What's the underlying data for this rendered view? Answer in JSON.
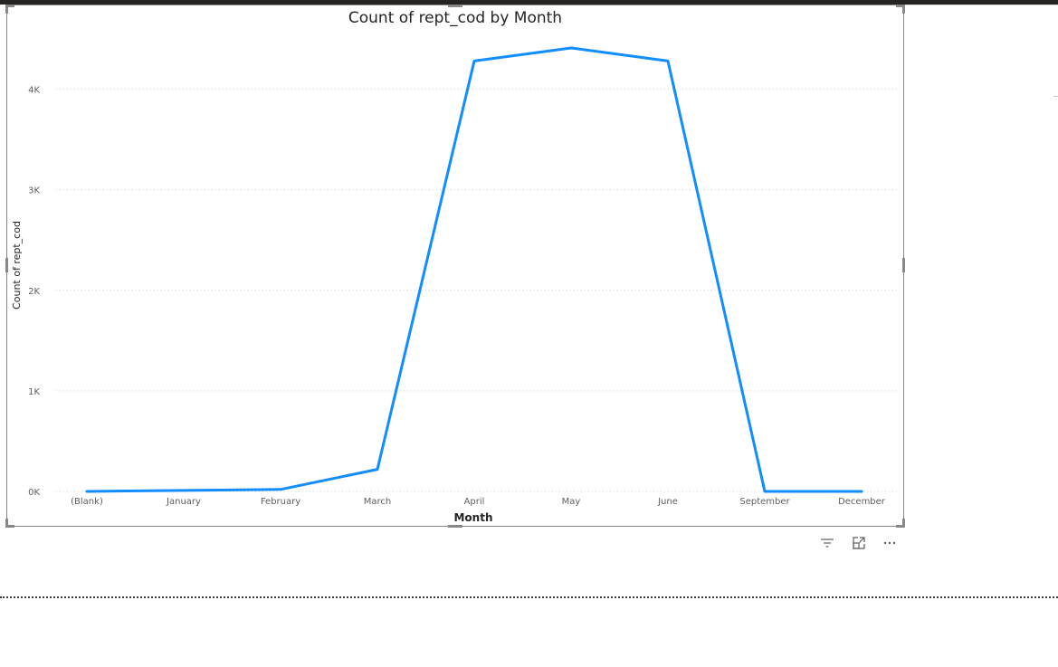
{
  "visual_header": {
    "filter_icon": "filter-icon",
    "focus_icon": "focus-mode-icon",
    "more_icon": "more-options-icon"
  },
  "chart_data": {
    "type": "line",
    "title": "Count of rept_cod by Month",
    "xlabel": "Month",
    "ylabel": "Count of rept_cod",
    "categories": [
      "(Blank)",
      "January",
      "February",
      "March",
      "April",
      "May",
      "June",
      "September",
      "December"
    ],
    "series": [
      {
        "values": [
          0,
          10,
          20,
          220,
          4280,
          4410,
          4280,
          0,
          0
        ],
        "color": "#118DFF"
      }
    ],
    "ylim": [
      0,
      4500
    ],
    "yticks": [
      0,
      1000,
      2000,
      3000,
      4000
    ],
    "ytick_labels": [
      "0K",
      "1K",
      "2K",
      "3K",
      "4K"
    ],
    "grid": true,
    "legend": "none"
  }
}
